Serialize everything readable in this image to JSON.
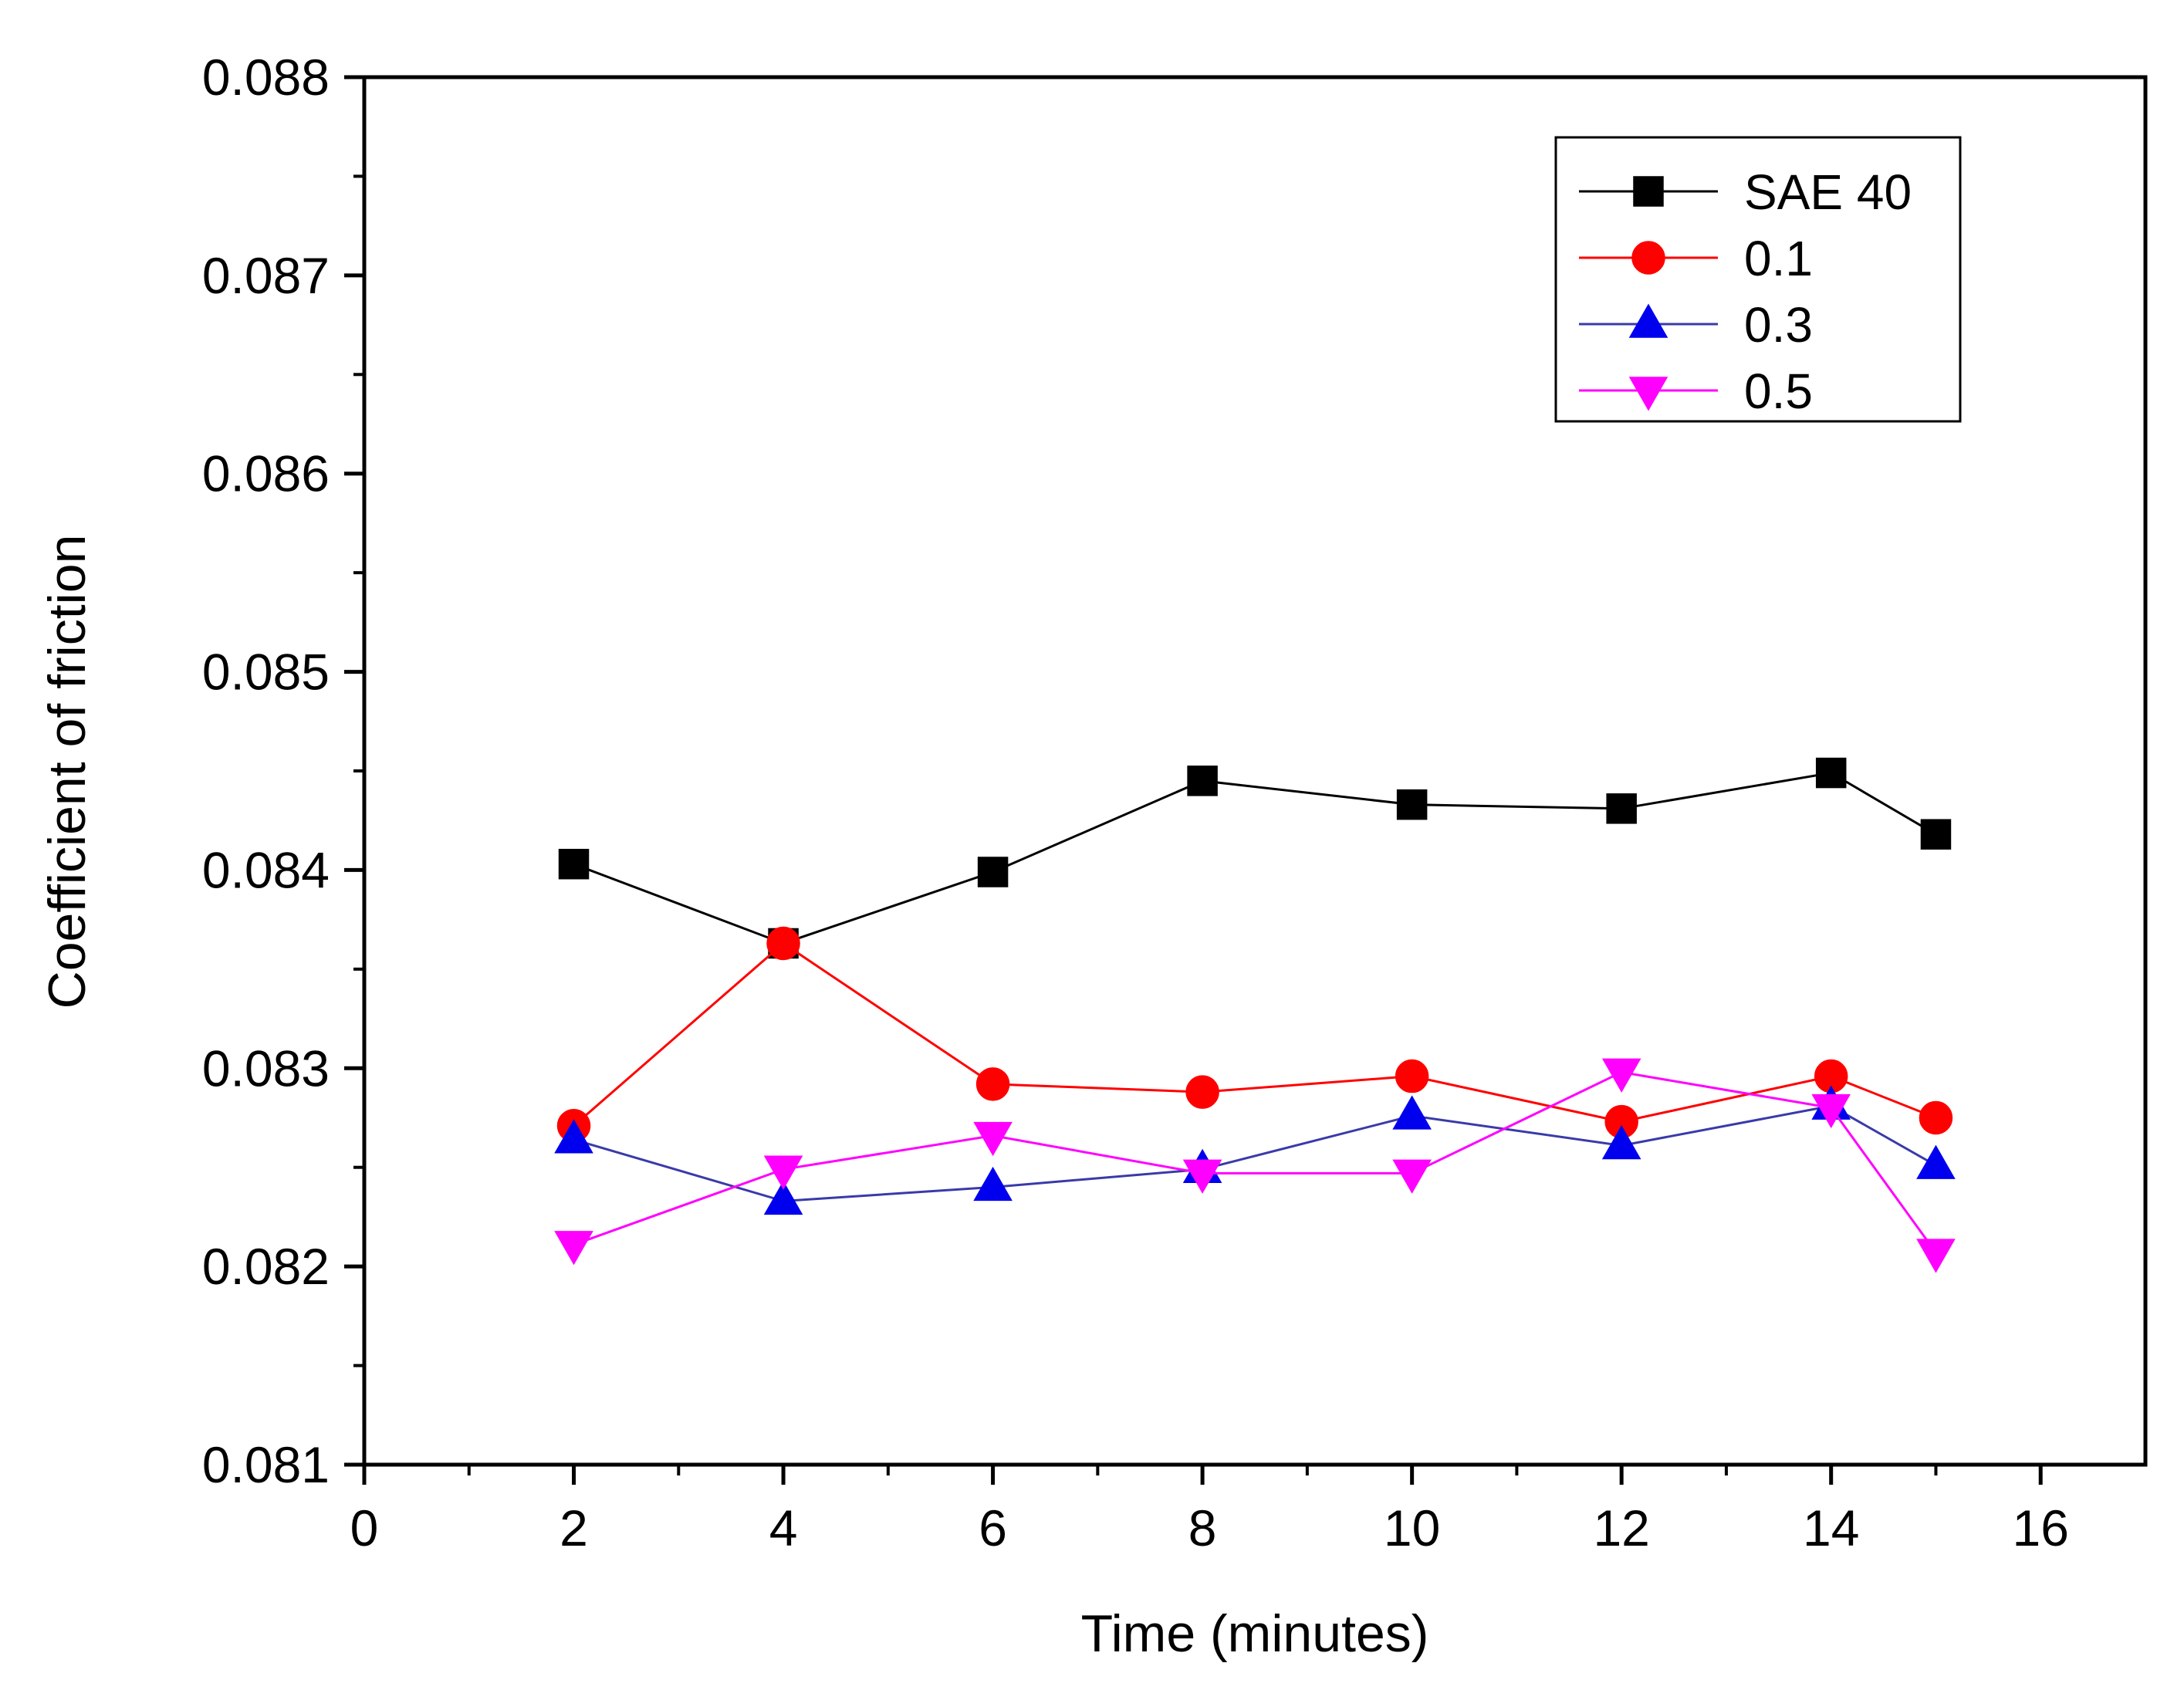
{
  "chart_data": {
    "type": "line",
    "title": "",
    "xlabel": "Time (minutes)",
    "ylabel": "Coefficient of friction",
    "xlim": [
      0,
      17
    ],
    "ylim": [
      0.081,
      0.088
    ],
    "xticks": [
      0,
      2,
      4,
      6,
      8,
      10,
      12,
      14,
      16
    ],
    "xtick_labels": [
      "0",
      "2",
      "4",
      "6",
      "8",
      "10",
      "12",
      "14",
      "16"
    ],
    "yticks": [
      0.081,
      0.082,
      0.083,
      0.084,
      0.085,
      0.086,
      0.087,
      0.088
    ],
    "ytick_labels": [
      "0.081",
      "0.082",
      "0.083",
      "0.084",
      "0.085",
      "0.086",
      "0.087",
      "0.088"
    ],
    "grid": false,
    "legend_position": "top-right",
    "x": [
      2,
      4,
      6,
      8,
      10,
      12,
      14,
      15
    ],
    "series": [
      {
        "name": "SAE 40",
        "marker": "square",
        "color": "#000000",
        "line_color": "#000000",
        "values": [
          0.08403,
          0.08363,
          0.08399,
          0.08445,
          0.08433,
          0.08431,
          0.08449,
          0.08418
        ]
      },
      {
        "name": "0.1",
        "marker": "circle",
        "color": "#ff0000",
        "line_color": "#ff0000",
        "values": [
          0.08271,
          0.08363,
          0.08292,
          0.08288,
          0.08296,
          0.08273,
          0.08296,
          0.08275
        ]
      },
      {
        "name": "0.3",
        "marker": "triangle-up",
        "color": "#0000ee",
        "line_color": "#3a3aaa",
        "values": [
          0.08264,
          0.08233,
          0.0824,
          0.08249,
          0.08276,
          0.08261,
          0.08281,
          0.08251
        ]
      },
      {
        "name": "0.5",
        "marker": "triangle-down",
        "color": "#ff00ff",
        "line_color": "#ff00ff",
        "values": [
          0.08211,
          0.08249,
          0.08266,
          0.08247,
          0.08247,
          0.08298,
          0.0828,
          0.08207
        ]
      }
    ]
  }
}
